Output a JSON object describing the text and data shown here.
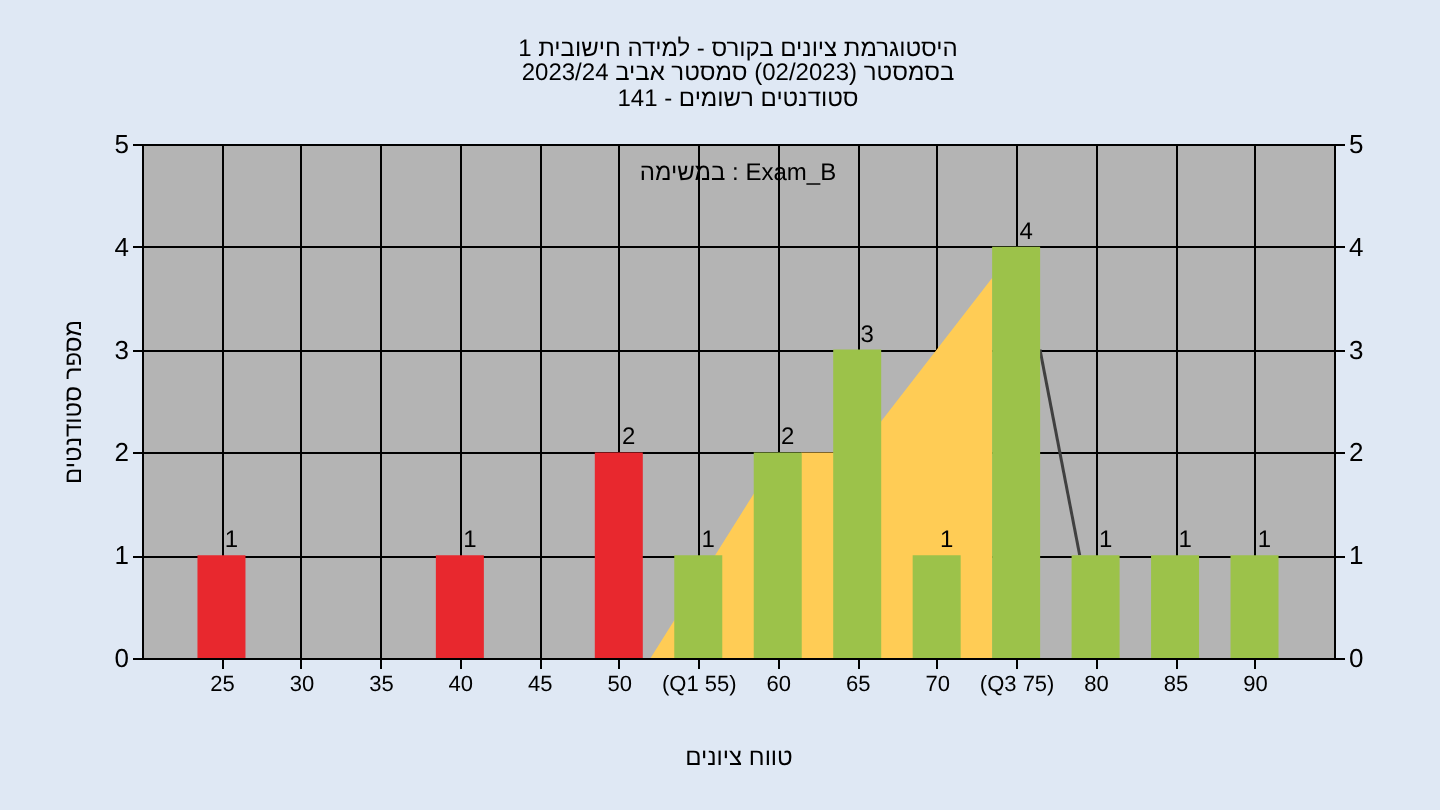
{
  "chart_data": {
    "type": "bar",
    "title": "היסטוגרמת ציונים בקורס - למידה חישובית 1",
    "subtitle": "בסמסטר  (02/2023)  סמסטר אביב 2023/24\nסטודנטים רשומים - 141",
    "xlabel": "טווח ציונים",
    "ylabel": "מספר סטודנטים",
    "annotations": [
      "במשימה : Exam_B"
    ],
    "series": [
      {
        "type": "area",
        "color": "#ffcc55",
        "x": [
          52,
          58.5,
          61.5,
          63.5,
          66.5,
          73.5
        ],
        "values": [
          0,
          1.6,
          2,
          2,
          2.3,
          3.7
        ]
      },
      {
        "type": "line",
        "color": "#404040",
        "x": [
          76.5,
          79
        ],
        "values": [
          3,
          1
        ]
      },
      {
        "x": [
          25,
          40,
          50,
          55,
          60,
          65,
          70,
          75,
          80,
          85,
          90
        ],
        "values": [
          1,
          1,
          2,
          1,
          2,
          3,
          1,
          4,
          1,
          1,
          1
        ],
        "value_labels": [
          "1",
          "1",
          "2",
          "1",
          "2",
          "3",
          "1",
          "4",
          "1",
          "1",
          "1"
        ],
        "colors": [
          "#e8282e",
          "#e8282e",
          "#e8282e",
          "#9cc24a",
          "#9cc24a",
          "#9cc24a",
          "#9cc24a",
          "#9cc24a",
          "#9cc24a",
          "#9cc24a",
          "#9cc24a"
        ]
      }
    ],
    "xlim": [
      20,
      95
    ],
    "xticks": [
      25,
      30,
      35,
      40,
      45,
      50,
      {
        "value": 55,
        "label": "(Q1 55)"
      },
      60,
      65,
      70,
      {
        "value": 75,
        "label": "(Q3 75)"
      },
      80,
      85,
      90
    ],
    "ylim": [
      0,
      5
    ],
    "yticks": [
      0,
      1,
      2,
      3,
      4,
      5
    ],
    "y2lim": [
      0,
      5
    ],
    "y2ticks": [
      0,
      1,
      2,
      3,
      4,
      5
    ],
    "grid": true
  }
}
